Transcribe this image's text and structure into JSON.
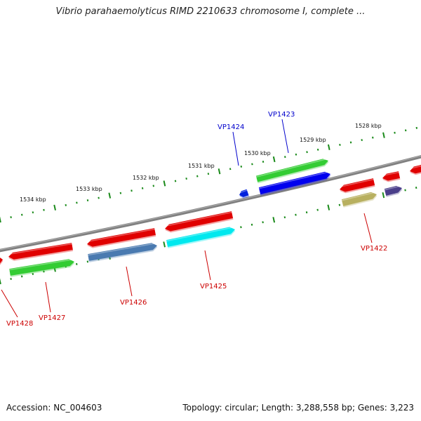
{
  "title": "Vibrio parahaemolyticus RIMD 2210633 chromosome I, complete ...",
  "footer": {
    "accession": "Accession: NC_004603",
    "summary": "Topology: circular; Length: 3,288,558 bp; Genes: 3,223"
  },
  "ticks": [
    {
      "label": "1534 kbp"
    },
    {
      "label": "1533 kbp"
    },
    {
      "label": "1532 kbp"
    },
    {
      "label": "1531 kbp"
    },
    {
      "label": "1530 kbp"
    },
    {
      "label": "1529 kbp"
    },
    {
      "label": "1528 kbp"
    }
  ],
  "gene_labels": [
    {
      "name": "VP1424",
      "color": "#0000cc"
    },
    {
      "name": "VP1423",
      "color": "#0000cc"
    },
    {
      "name": "VP1422",
      "color": "#cc0000"
    },
    {
      "name": "VP1425",
      "color": "#cc0000"
    },
    {
      "name": "VP1426",
      "color": "#cc0000"
    },
    {
      "name": "VP1427",
      "color": "#cc0000"
    },
    {
      "name": "VP1428",
      "color": "#cc0000"
    }
  ],
  "colors": {
    "backbone": "#808080",
    "tick": "#1a8a1a",
    "gene": "#e00000",
    "cds": "#33cc33",
    "highlight": "#0000ee",
    "highlight_small": "#0022dd",
    "cds_steel": "#4a7ab0",
    "cds_cyan": "#00e8ee",
    "cds_khaki": "#b8b060",
    "cds_purple": "#4a3f8a"
  }
}
